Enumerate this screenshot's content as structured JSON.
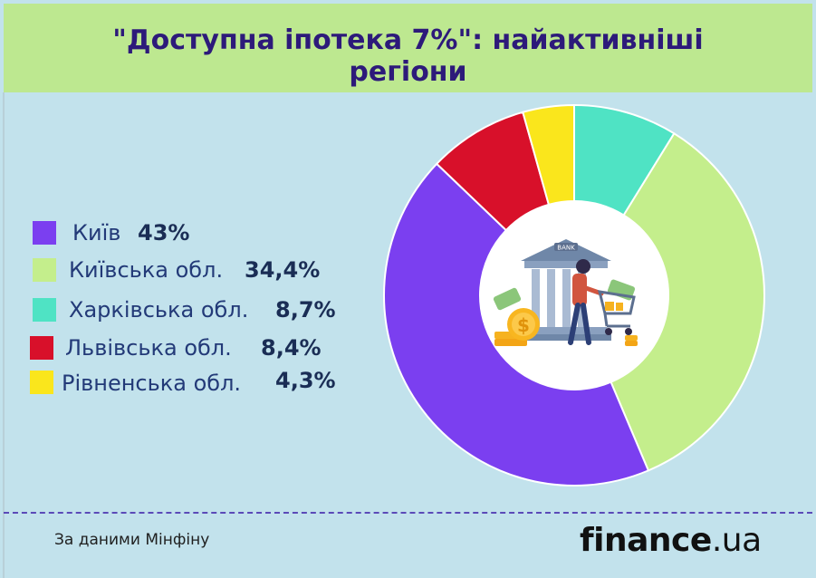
{
  "title": {
    "line1": "\"Доступна іпотека 7%\": найактивніші",
    "line2": "регіони"
  },
  "legend": [
    {
      "label": "Київ",
      "value": "43%",
      "color": "#7b3ff0"
    },
    {
      "label": "Київська обл.",
      "value": "34,4%",
      "color": "#c4ee8c"
    },
    {
      "label": "Харківська обл.",
      "value": "8,7%",
      "color": "#4fe3c4"
    },
    {
      "label": "Львівська обл.",
      "value": "8,4%",
      "color": "#d8102a"
    },
    {
      "label": "Рівненська обл.",
      "value": "4,3%",
      "color": "#fae61c"
    }
  ],
  "chart_data": {
    "type": "pie",
    "variant": "donut",
    "title": "\"Доступна іпотека 7%\": найактивніші регіони",
    "legend_position": "left",
    "categories": [
      "Київ",
      "Київська обл.",
      "Харківська обл.",
      "Львівська обл.",
      "Рівненська обл."
    ],
    "values": [
      43,
      34.4,
      8.7,
      8.4,
      4.3
    ],
    "value_labels": [
      "43%",
      "34,4%",
      "8,7%",
      "8,4%",
      "4,3%"
    ],
    "colors": [
      "#7b3ff0",
      "#c4ee8c",
      "#4fe3c4",
      "#d8102a",
      "#fae61c"
    ]
  },
  "center_illustration": {
    "icon": "bank-building-shopping-cart-icon",
    "sign": "BANK",
    "coin_symbol": "$"
  },
  "footer": {
    "source": "За даними Мінфіну",
    "brand_name": "finance",
    "brand_dot": ".",
    "brand_tld": "ua"
  }
}
